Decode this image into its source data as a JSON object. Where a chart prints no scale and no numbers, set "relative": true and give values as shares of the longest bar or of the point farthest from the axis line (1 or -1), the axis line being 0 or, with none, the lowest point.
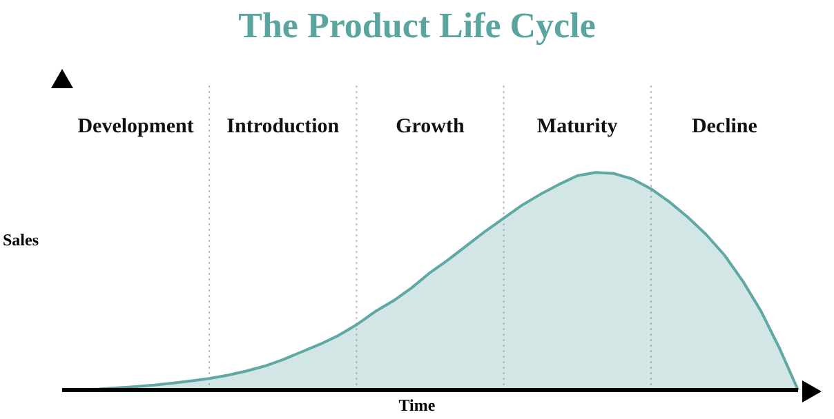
{
  "chart_data": {
    "type": "area",
    "title": "The Product Life Cycle",
    "xlabel": "Time",
    "ylabel": "Sales",
    "relative": true,
    "grid": "x",
    "marker": "none",
    "categories": [
      null,
      null,
      null,
      null,
      null,
      null,
      null,
      null,
      null,
      null,
      null,
      null,
      null,
      null,
      null,
      null,
      null,
      null,
      null,
      null,
      null,
      null,
      null,
      null,
      null,
      null,
      null,
      null,
      null,
      null,
      null,
      null,
      null,
      null,
      null,
      null,
      null,
      null,
      null,
      null,
      null
    ],
    "series": [
      {
        "color": "#5fa8a3",
        "values": [
          0,
          0.002,
          0.005,
          0.01,
          0.016,
          0.023,
          0.032,
          0.042,
          0.053,
          0.068,
          0.087,
          0.11,
          0.14,
          0.175,
          0.21,
          0.25,
          0.3,
          0.36,
          0.41,
          0.47,
          0.54,
          0.6,
          0.665,
          0.73,
          0.79,
          0.85,
          0.9,
          0.945,
          0.985,
          1,
          0.995,
          0.97,
          0.925,
          0.865,
          0.795,
          0.715,
          0.62,
          0.5,
          0.36,
          0.19,
          0
        ]
      }
    ],
    "annotations": [
      "Development",
      "Introduction",
      "Growth",
      "Maturity",
      "Decline"
    ]
  }
}
